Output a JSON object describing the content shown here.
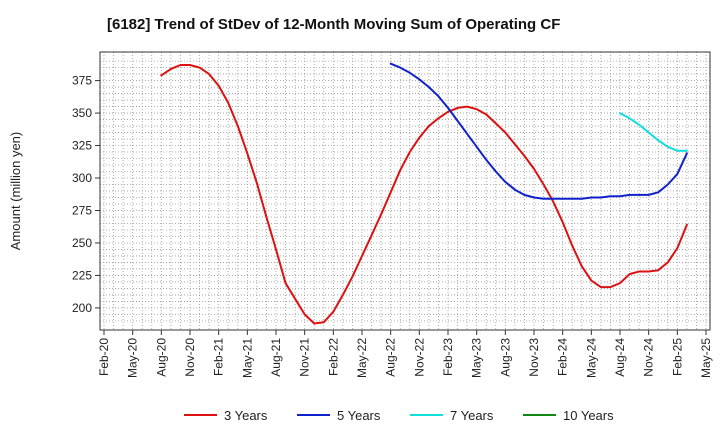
{
  "chart_data": {
    "type": "line",
    "title": "[6182]  Trend of StDev of 12-Month Moving Sum of Operating CF",
    "ylabel": "Amount (million yen)",
    "xlabel": "",
    "ylim": [
      183,
      397
    ],
    "y_ticks": [
      200,
      225,
      250,
      275,
      300,
      325,
      350,
      375
    ],
    "x_tick_labels": [
      "Feb-20",
      "May-20",
      "Aug-20",
      "Nov-20",
      "Feb-21",
      "May-21",
      "Aug-21",
      "Nov-21",
      "Feb-22",
      "May-22",
      "Aug-22",
      "Nov-22",
      "Feb-23",
      "May-23",
      "Aug-23",
      "Nov-23",
      "Feb-24",
      "May-24",
      "Aug-24",
      "Nov-24",
      "Feb-25",
      "May-25"
    ],
    "grid": true,
    "legend_position": "bottom",
    "series": [
      {
        "name": "3 Years",
        "color": "#dd1111",
        "start_index": 6,
        "values": [
          379,
          384,
          387,
          387,
          385,
          380,
          371,
          358,
          340,
          319,
          296,
          270,
          245,
          219,
          207,
          195,
          188,
          189,
          197,
          210,
          224,
          240,
          256,
          272,
          289,
          306,
          320,
          331,
          340,
          346,
          351,
          354,
          355,
          353,
          349,
          342,
          335,
          326,
          317,
          307,
          295,
          282,
          266,
          248,
          232,
          221,
          216,
          216,
          219,
          226,
          228,
          228,
          229,
          235,
          246,
          264
        ]
      },
      {
        "name": "5 Years",
        "color": "#1122cc",
        "start_index": 30,
        "values": [
          388,
          385,
          381,
          376,
          370,
          363,
          354,
          344,
          334,
          324,
          314,
          305,
          297,
          291,
          287,
          285,
          284,
          284,
          284,
          284,
          284,
          285,
          285,
          286,
          286,
          287,
          287,
          287,
          289,
          295,
          303,
          319
        ]
      },
      {
        "name": "7 Years",
        "color": "#11dddd",
        "start_index": 54,
        "values": [
          350,
          346,
          341,
          335,
          329,
          324,
          321,
          321
        ]
      },
      {
        "name": "10 Years",
        "color": "#118811",
        "start_index": 0,
        "values": []
      }
    ]
  }
}
